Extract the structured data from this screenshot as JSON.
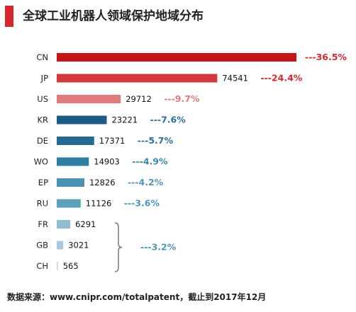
{
  "title": "全球工业机器人领域保护地域分布",
  "source": "数据来源：www.cnipr.com/totalpatent，截止到2017年12月",
  "chart_data": {
    "type": "bar",
    "orientation": "horizontal",
    "categories": [
      "CN",
      "JP",
      "US",
      "KR",
      "DE",
      "WO",
      "EP",
      "RU",
      "FR",
      "GB",
      "CH"
    ],
    "values": [
      111300,
      74541,
      29712,
      23221,
      17371,
      14903,
      12826,
      11126,
      6291,
      3021,
      565
    ],
    "value_labels": [
      "",
      "74541",
      "29712",
      "23221",
      "17371",
      "14903",
      "12826",
      "11126",
      "6291",
      "3021",
      "565"
    ],
    "percent_labels": [
      "---36.5%",
      "---24.4%",
      "---9.7%",
      "---7.6%",
      "---5.7%",
      "---4.9%",
      "---4.2%",
      "---3.6%",
      "",
      "",
      ""
    ],
    "group_percent_label": "---3.2%",
    "group_members": [
      "FR",
      "GB",
      "CH"
    ],
    "colors": [
      "#c8151d",
      "#d23a3f",
      "#e07a7c",
      "#1c5b84",
      "#246b94",
      "#2f7ea1",
      "#4b93b2",
      "#5ea1bd",
      "#8fbcd2",
      "#a9cade",
      "#c4dae7"
    ],
    "percent_colors": [
      "#d7282f",
      "#d7282f",
      "#e07a7c",
      "#2a6f99",
      "#2a6f99",
      "#3a87ab",
      "#4d97b8",
      "#4d97b8",
      "",
      "",
      ""
    ],
    "group_color": "#4d97b8",
    "bracket_color": "#8c8c8c",
    "grid": false,
    "legend": "none"
  }
}
